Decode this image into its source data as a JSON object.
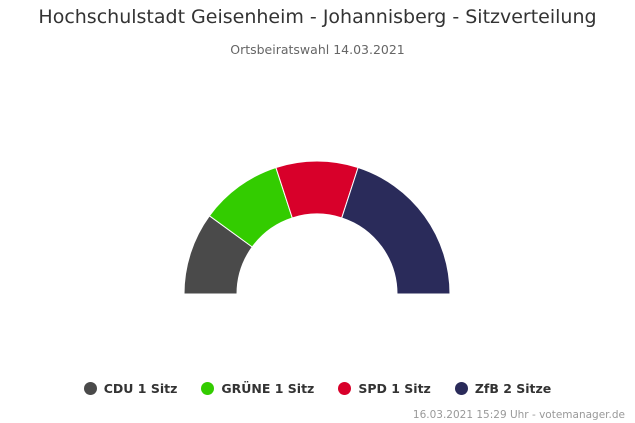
{
  "chart_data": {
    "type": "pie",
    "variant": "semi-donut parliament",
    "title": "Hochschulstadt Geisenheim - Johannisberg - Sitzverteilung",
    "subtitle": "Ortsbeiratswahl 14.03.2021",
    "categories": [
      "CDU",
      "GRÜNE",
      "SPD",
      "ZfB"
    ],
    "values": [
      1,
      1,
      1,
      2
    ],
    "colors": [
      "#4a4a4a",
      "#33cc00",
      "#d8002a",
      "#2a2b5a"
    ],
    "legend": [
      "CDU 1 Sitz",
      "GRÜNE 1 Sitz",
      "SPD 1 Sitz",
      "ZfB 2 Sitze"
    ],
    "legend_position": "bottom",
    "credits": "16.03.2021 15:29 Uhr - votemanager.de"
  }
}
